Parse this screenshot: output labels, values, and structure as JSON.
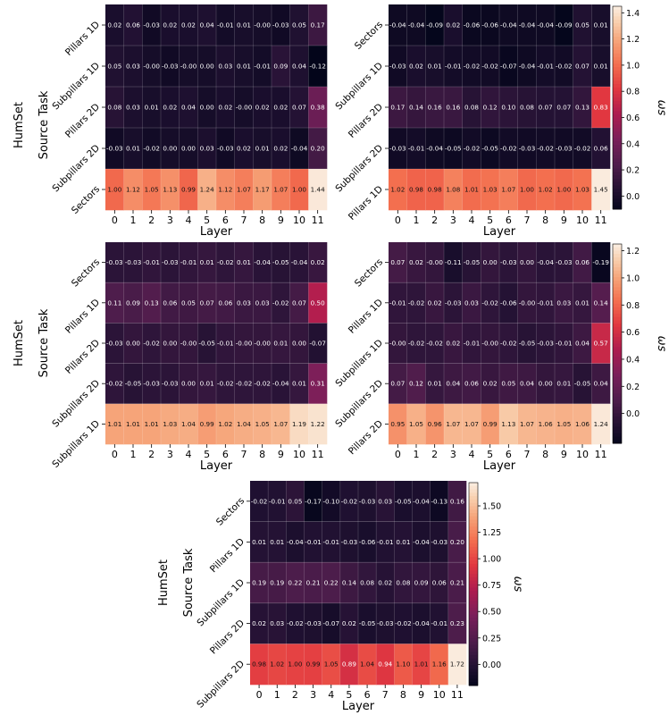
{
  "figure": {
    "chart_data": [
      {
        "type": "heatmap",
        "group_label": "HumSet",
        "ylabel": "Source Task",
        "xlabel": "Layer",
        "x": [
          0,
          1,
          2,
          3,
          4,
          5,
          6,
          7,
          8,
          9,
          10,
          11
        ],
        "rows": [
          "Pillars 1D",
          "Subpillars 1D",
          "Pillars 2D",
          "Subpillars 2D",
          "Sectors"
        ],
        "values": [
          [
            "0.02",
            "0.06",
            "-0.03",
            "0.02",
            "0.02",
            "0.04",
            "-0.01",
            "0.01",
            "-0.00",
            "-0.03",
            "0.05",
            "0.17"
          ],
          [
            "0.05",
            "0.03",
            "-0.00",
            "-0.03",
            "-0.00",
            "0.00",
            "0.03",
            "0.01",
            "-0.01",
            "0.09",
            "0.04",
            "-0.12"
          ],
          [
            "0.08",
            "0.03",
            "0.01",
            "0.02",
            "0.04",
            "0.00",
            "0.02",
            "-0.00",
            "0.02",
            "0.02",
            "0.07",
            "0.38"
          ],
          [
            "-0.03",
            "0.01",
            "-0.02",
            "0.00",
            "0.00",
            "0.03",
            "-0.03",
            "0.02",
            "0.01",
            "0.02",
            "-0.04",
            "0.20"
          ],
          [
            "1.00",
            "1.12",
            "1.05",
            "1.13",
            "0.99",
            "1.24",
            "1.12",
            "1.07",
            "1.17",
            "1.07",
            "1.00",
            "1.44"
          ]
        ]
      },
      {
        "type": "heatmap",
        "xlabel": "Layer",
        "x": [
          0,
          1,
          2,
          3,
          4,
          5,
          6,
          7,
          8,
          9,
          10,
          11
        ],
        "rows": [
          "Sectors",
          "Subpillars 1D",
          "Pillars 2D",
          "Subpillars 2D",
          "Pillars 1D"
        ],
        "values": [
          [
            "-0.04",
            "-0.04",
            "-0.09",
            "0.02",
            "-0.06",
            "-0.06",
            "-0.04",
            "-0.04",
            "-0.04",
            "-0.09",
            "0.05",
            "0.01"
          ],
          [
            "-0.03",
            "0.02",
            "0.01",
            "-0.01",
            "-0.02",
            "-0.02",
            "-0.07",
            "-0.04",
            "-0.01",
            "-0.02",
            "0.07",
            "0.01"
          ],
          [
            "0.17",
            "0.14",
            "0.16",
            "0.16",
            "0.08",
            "0.12",
            "0.10",
            "0.08",
            "0.07",
            "0.07",
            "0.13",
            "0.83"
          ],
          [
            "-0.03",
            "-0.01",
            "-0.04",
            "-0.05",
            "-0.02",
            "-0.05",
            "-0.02",
            "-0.03",
            "-0.02",
            "-0.03",
            "-0.02",
            "0.06"
          ],
          [
            "1.02",
            "0.98",
            "0.98",
            "1.08",
            "1.01",
            "1.03",
            "1.07",
            "1.00",
            "1.02",
            "1.00",
            "1.03",
            "1.45"
          ]
        ],
        "colorbar": {
          "label": "ωs",
          "min": -0.1,
          "max": 1.45,
          "ticks": [
            "0.0",
            "0.2",
            "0.4",
            "0.6",
            "0.8",
            "1.0",
            "1.2",
            "1.4"
          ]
        }
      },
      {
        "type": "heatmap",
        "group_label": "HumSet",
        "ylabel": "Source Task",
        "xlabel": "Layer",
        "x": [
          0,
          1,
          2,
          3,
          4,
          5,
          6,
          7,
          8,
          9,
          10,
          11
        ],
        "rows": [
          "Sectors",
          "Pillars 1D",
          "Pillars 2D",
          "Subpillars 2D",
          "Subpillars 1D"
        ],
        "values": [
          [
            "-0.03",
            "-0.03",
            "-0.01",
            "-0.03",
            "-0.01",
            "0.01",
            "-0.02",
            "0.01",
            "-0.04",
            "-0.05",
            "-0.04",
            "0.02"
          ],
          [
            "0.11",
            "0.09",
            "0.13",
            "0.06",
            "0.05",
            "0.07",
            "0.06",
            "0.03",
            "0.03",
            "-0.02",
            "0.07",
            "0.50"
          ],
          [
            "-0.03",
            "0.00",
            "-0.02",
            "0.00",
            "-0.00",
            "-0.05",
            "-0.01",
            "-0.00",
            "-0.00",
            "0.01",
            "0.00",
            "-0.07"
          ],
          [
            "-0.02",
            "-0.05",
            "-0.03",
            "-0.03",
            "0.00",
            "0.01",
            "-0.02",
            "-0.02",
            "-0.02",
            "-0.04",
            "0.01",
            "0.31"
          ],
          [
            "1.01",
            "1.01",
            "1.01",
            "1.03",
            "1.04",
            "0.99",
            "1.02",
            "1.04",
            "1.05",
            "1.07",
            "1.19",
            "1.22"
          ]
        ]
      },
      {
        "type": "heatmap",
        "xlabel": "Layer",
        "x": [
          0,
          1,
          2,
          3,
          4,
          5,
          6,
          7,
          8,
          9,
          10,
          11
        ],
        "rows": [
          "Sectors",
          "Pillars 1D",
          "Subpillars 1D",
          "Subpillars 2D",
          "Pillars 2D"
        ],
        "values": [
          [
            "0.07",
            "0.02",
            "-0.00",
            "-0.11",
            "-0.05",
            "0.00",
            "-0.03",
            "0.00",
            "-0.04",
            "-0.03",
            "0.06",
            "-0.19"
          ],
          [
            "-0.01",
            "-0.02",
            "0.02",
            "-0.03",
            "0.03",
            "-0.02",
            "-0.06",
            "-0.00",
            "-0.01",
            "0.03",
            "0.01",
            "0.14"
          ],
          [
            "-0.00",
            "-0.02",
            "-0.02",
            "0.02",
            "-0.01",
            "-0.00",
            "-0.02",
            "-0.05",
            "-0.03",
            "-0.01",
            "0.04",
            "0.57"
          ],
          [
            "0.07",
            "0.12",
            "0.01",
            "0.04",
            "0.06",
            "0.02",
            "0.05",
            "0.04",
            "0.00",
            "0.01",
            "-0.05",
            "0.04"
          ],
          [
            "0.95",
            "1.05",
            "0.96",
            "1.07",
            "1.07",
            "0.99",
            "1.13",
            "1.07",
            "1.06",
            "1.05",
            "1.06",
            "1.24"
          ]
        ],
        "colorbar": {
          "label": "ωs",
          "min": -0.22,
          "max": 1.25,
          "ticks": [
            "0.0",
            "0.2",
            "0.4",
            "0.6",
            "0.8",
            "1.0",
            "1.2"
          ]
        }
      },
      {
        "type": "heatmap",
        "group_label": "HumSet",
        "ylabel": "Source Task",
        "xlabel": "Layer",
        "x": [
          0,
          1,
          2,
          3,
          4,
          5,
          6,
          7,
          8,
          9,
          10,
          11
        ],
        "rows": [
          "Sectors",
          "Pillars 1D",
          "Subpillars 1D",
          "Pillars 2D",
          "Subpillars 2D"
        ],
        "values": [
          [
            "-0.02",
            "-0.01",
            "0.05",
            "-0.17",
            "-0.10",
            "-0.02",
            "-0.03",
            "0.03",
            "-0.05",
            "-0.04",
            "-0.13",
            "0.16"
          ],
          [
            "0.01",
            "0.01",
            "-0.04",
            "-0.01",
            "-0.01",
            "-0.03",
            "-0.06",
            "-0.01",
            "0.01",
            "-0.04",
            "-0.03",
            "0.20"
          ],
          [
            "0.19",
            "0.19",
            "0.22",
            "0.21",
            "0.22",
            "0.14",
            "0.08",
            "0.02",
            "0.08",
            "0.09",
            "0.06",
            "0.21"
          ],
          [
            "0.02",
            "0.03",
            "-0.02",
            "-0.03",
            "-0.07",
            "0.02",
            "-0.05",
            "-0.03",
            "-0.02",
            "-0.04",
            "-0.01",
            "0.23"
          ],
          [
            "0.98",
            "1.02",
            "1.00",
            "0.99",
            "1.05",
            "0.89",
            "1.04",
            "0.94",
            "1.10",
            "1.01",
            "1.16",
            "1.72"
          ]
        ],
        "colorbar": {
          "label": "ωs",
          "min": -0.2,
          "max": 1.72,
          "ticks": [
            "0.00",
            "0.25",
            "0.50",
            "0.75",
            "1.00",
            "1.25",
            "1.50"
          ]
        }
      }
    ]
  }
}
